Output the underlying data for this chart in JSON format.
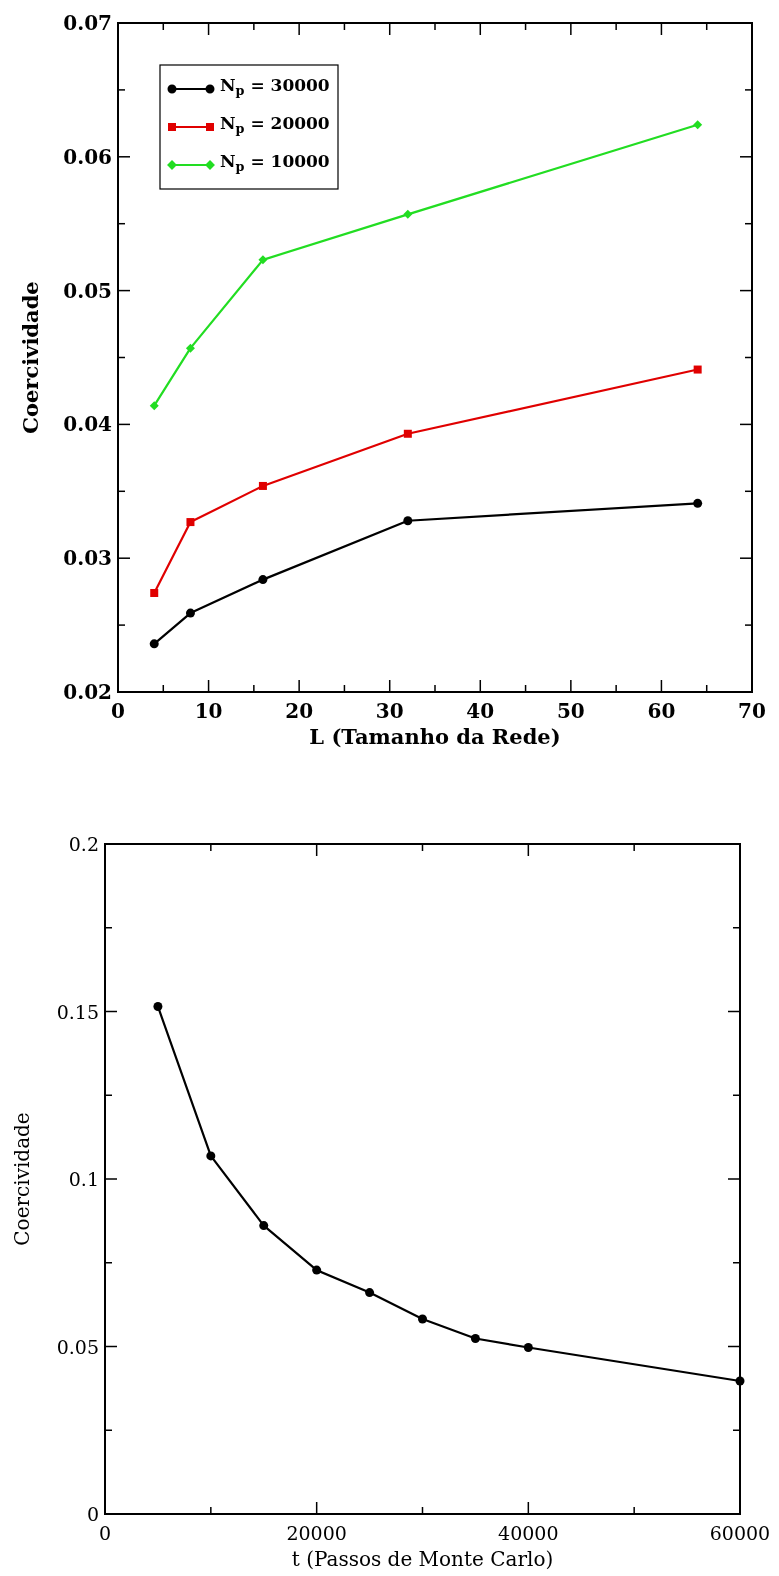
{
  "chart_data": [
    {
      "type": "line",
      "xlabel": "L (Tamanho da Rede)",
      "ylabel": "Coercividade",
      "xlim": [
        0,
        70
      ],
      "ylim": [
        0.02,
        0.07
      ],
      "xticks": [
        0,
        {
          "value": 5,
          "label": null
        },
        10,
        {
          "value": 15,
          "label": null
        },
        20,
        {
          "value": 25,
          "label": null
        },
        30,
        {
          "value": 35,
          "label": null
        },
        40,
        {
          "value": 45,
          "label": null
        },
        50,
        {
          "value": 55,
          "label": null
        },
        60,
        {
          "value": 65,
          "label": null
        },
        70
      ],
      "yticks": [
        0.02,
        {
          "value": 0.025,
          "label": null
        },
        0.03,
        {
          "value": 0.035,
          "label": null
        },
        0.04,
        {
          "value": 0.045,
          "label": null
        },
        0.05,
        {
          "value": 0.055,
          "label": null
        },
        0.06,
        {
          "value": 0.065,
          "label": null
        },
        0.07
      ],
      "x": [
        4,
        8,
        16,
        32,
        64
      ],
      "legend": "top left",
      "grid": false,
      "series": [
        {
          "name": "N$_{p}$ = 30000",
          "color": "#000000",
          "marker": "circle",
          "values": [
            0.0236,
            0.0259,
            0.0284,
            0.0328,
            0.0341
          ]
        },
        {
          "name": "N$_{p}$ = 20000",
          "color": "#e00000",
          "marker": "square",
          "values": [
            0.0274,
            0.0327,
            0.0354,
            0.0393,
            0.0441
          ]
        },
        {
          "name": "N$_{p}$ = 10000",
          "color": "#22dd22",
          "marker": "diamond",
          "values": [
            0.0414,
            0.0457,
            0.0523,
            0.0557,
            0.0624
          ]
        }
      ]
    },
    {
      "type": "line",
      "xlabel": "t (Passos de Monte Carlo)",
      "ylabel": "Coercividade",
      "xlim": [
        0,
        60000
      ],
      "ylim": [
        0,
        0.2
      ],
      "xticks": [
        0,
        {
          "value": 10000,
          "label": null
        },
        20000,
        {
          "value": 30000,
          "label": null
        },
        40000,
        {
          "value": 50000,
          "label": null
        },
        60000
      ],
      "yticks": [
        0,
        {
          "value": 0.025,
          "label": null
        },
        0.05,
        {
          "value": 0.075,
          "label": null
        },
        0.1,
        {
          "value": 0.125,
          "label": null
        },
        0.15,
        {
          "value": 0.175,
          "label": null
        },
        0.2
      ],
      "x": [
        5000,
        10000,
        15000,
        20000,
        25000,
        30000,
        35000,
        40000,
        60000
      ],
      "legend": false,
      "grid": false,
      "marker": "circle",
      "series": [
        {
          "color": "#000000",
          "values": [
            0.1515,
            0.1069,
            0.0861,
            0.0728,
            0.0661,
            0.0582,
            0.0524,
            0.0497,
            0.0397
          ]
        }
      ]
    }
  ]
}
